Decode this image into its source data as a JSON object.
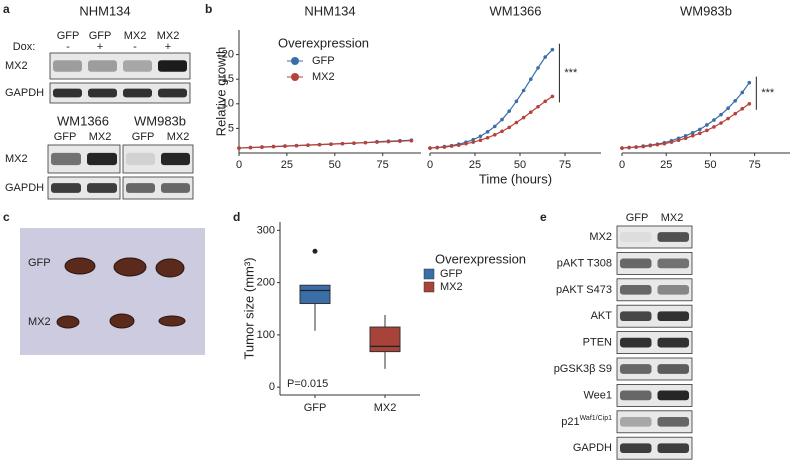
{
  "panels": {
    "a": {
      "letter": "a",
      "top": {
        "title": "NHM134",
        "lanes": [
          "GFP",
          "GFP",
          "MX2",
          "MX2"
        ],
        "dox_label": "Dox:",
        "dox": [
          "-",
          "+",
          "-",
          "+"
        ],
        "rows": [
          "MX2",
          "GAPDH"
        ]
      },
      "bottom": {
        "titles": [
          "WM1366",
          "WM983b"
        ],
        "lanes": [
          "GFP",
          "MX2",
          "GFP",
          "MX2"
        ],
        "rows": [
          "MX2",
          "GAPDH"
        ]
      }
    },
    "b": {
      "letter": "b"
    },
    "c": {
      "letter": "c",
      "rows": [
        "GFP",
        "MX2"
      ]
    },
    "d": {
      "letter": "d"
    },
    "e": {
      "letter": "e",
      "lanes": [
        "GFP",
        "MX2"
      ],
      "rows": [
        {
          "label": "MX2"
        },
        {
          "label": "pAKT T308"
        },
        {
          "label": "pAKT S473"
        },
        {
          "label": "AKT"
        },
        {
          "label": "PTEN"
        },
        {
          "label": "pGSK3β S9"
        },
        {
          "label": "Wee1"
        },
        {
          "label": "p21",
          "sup": "Waf1/Cip1"
        },
        {
          "label": "GAPDH"
        }
      ]
    }
  },
  "chart_data": [
    {
      "type": "line",
      "title": "NHM134",
      "ylabel": "Relative growth",
      "legend": true,
      "legend_title": "Overexpression",
      "x": [
        0,
        6,
        12,
        18,
        24,
        30,
        36,
        42,
        48,
        54,
        60,
        66,
        72,
        78,
        84,
        90
      ],
      "series": [
        {
          "name": "GFP",
          "color": "#3b6ea8",
          "values": [
            1,
            1.1,
            1.2,
            1.3,
            1.4,
            1.5,
            1.6,
            1.7,
            1.8,
            1.9,
            2.0,
            2.1,
            2.3,
            2.4,
            2.5,
            2.6
          ]
        },
        {
          "name": "MX2",
          "color": "#b5433a",
          "values": [
            1,
            1.1,
            1.2,
            1.3,
            1.4,
            1.5,
            1.6,
            1.7,
            1.8,
            1.9,
            2.0,
            2.1,
            2.2,
            2.3,
            2.4,
            2.5
          ]
        }
      ],
      "xlim": [
        0,
        95
      ],
      "xticks": [
        0,
        25,
        50,
        75
      ],
      "ylim": [
        0,
        25
      ],
      "yticks": [
        5,
        10,
        15,
        20
      ]
    },
    {
      "type": "line",
      "title": "WM1366",
      "xlabel": "Time (hours)",
      "annotation": "***",
      "x": [
        0,
        4,
        8,
        12,
        16,
        20,
        24,
        28,
        32,
        36,
        40,
        44,
        48,
        52,
        56,
        60,
        64,
        68
      ],
      "series": [
        {
          "name": "GFP",
          "color": "#3b6ea8",
          "values": [
            1,
            1.1,
            1.3,
            1.5,
            1.8,
            2.2,
            2.7,
            3.4,
            4.3,
            5.4,
            6.8,
            8.5,
            10.5,
            12.7,
            15,
            17.3,
            19.5,
            21
          ]
        },
        {
          "name": "MX2",
          "color": "#b5433a",
          "values": [
            1,
            1.1,
            1.2,
            1.4,
            1.6,
            1.9,
            2.2,
            2.6,
            3.1,
            3.7,
            4.4,
            5.2,
            6.2,
            7.2,
            8.3,
            9.4,
            10.5,
            11.5
          ]
        }
      ],
      "xlim": [
        0,
        95
      ],
      "xticks": [
        0,
        25,
        50,
        75
      ],
      "ylim": [
        0,
        25
      ]
    },
    {
      "type": "line",
      "title": "WM983b",
      "annotation": "***",
      "x": [
        0,
        4,
        8,
        12,
        16,
        20,
        24,
        28,
        32,
        36,
        40,
        44,
        48,
        52,
        56,
        60,
        64,
        68,
        72
      ],
      "series": [
        {
          "name": "GFP",
          "color": "#3b6ea8",
          "values": [
            1,
            1.1,
            1.2,
            1.4,
            1.6,
            1.8,
            2.1,
            2.5,
            3,
            3.5,
            4.1,
            4.8,
            5.7,
            6.7,
            7.8,
            9.1,
            10.6,
            12.3,
            14.3
          ]
        },
        {
          "name": "MX2",
          "color": "#b5433a",
          "values": [
            1,
            1.1,
            1.2,
            1.3,
            1.5,
            1.7,
            1.9,
            2.2,
            2.6,
            3,
            3.5,
            4,
            4.6,
            5.3,
            6.1,
            7,
            8,
            9,
            10
          ]
        }
      ],
      "xlim": [
        0,
        95
      ],
      "xticks": [
        0,
        25,
        50,
        75
      ],
      "ylim": [
        0,
        25
      ]
    },
    {
      "type": "box",
      "ylabel": "Tumor size (mm³)",
      "annotation": "P=0.015",
      "legend": true,
      "legend_title": "Overexpression",
      "categories": [
        "GFP",
        "MX2"
      ],
      "colors": [
        "#3b6ea8",
        "#a8433a"
      ],
      "stats": [
        {
          "min": 108,
          "q1": 160,
          "median": 185,
          "q3": 195,
          "max": 195,
          "outliers": [
            260
          ]
        },
        {
          "min": 35,
          "q1": 68,
          "median": 78,
          "q3": 115,
          "max": 138,
          "outliers": []
        }
      ],
      "ylim": [
        -15,
        316
      ],
      "yticks": [
        0,
        100,
        200,
        300
      ]
    }
  ]
}
